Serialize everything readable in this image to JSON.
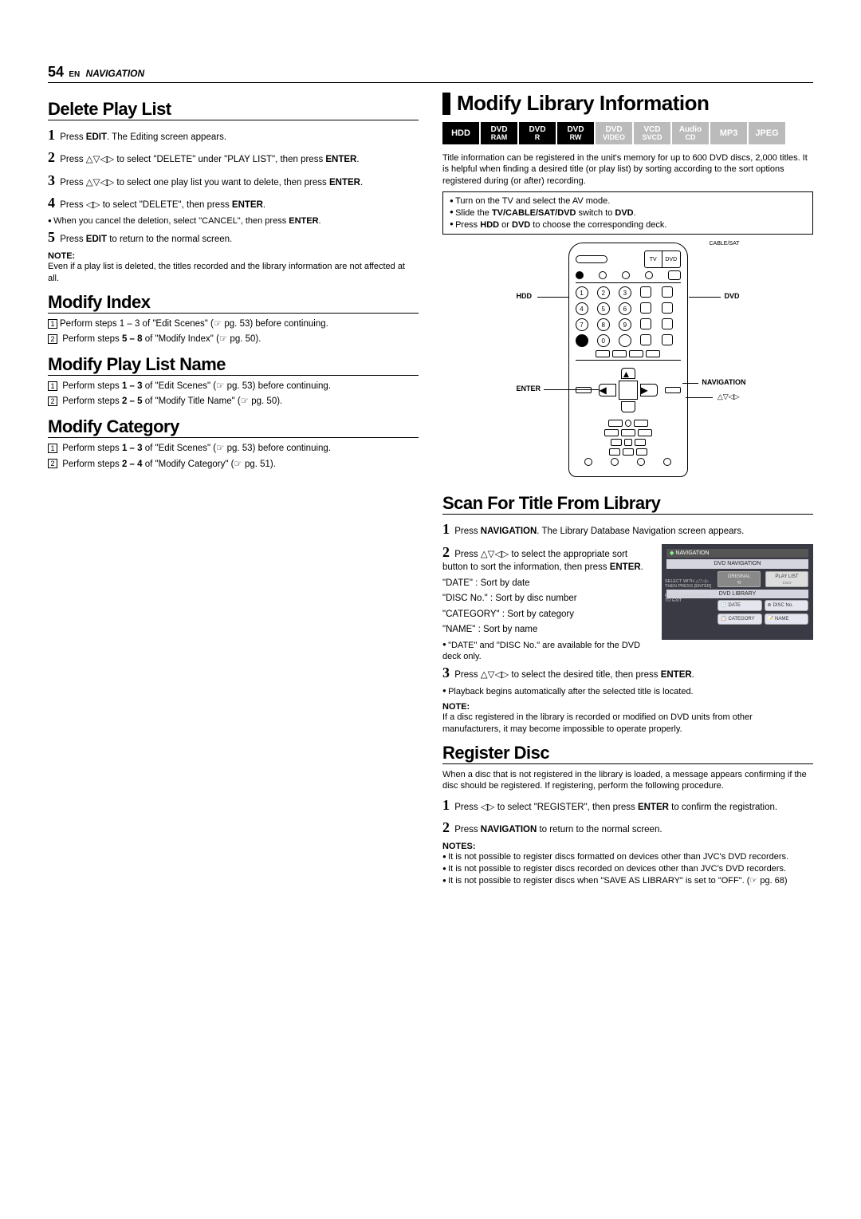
{
  "header": {
    "page_num": "54",
    "lang": "EN",
    "section": "NAVIGATION"
  },
  "left": {
    "delete": {
      "title": "Delete Play List",
      "s1": "Press EDIT. The Editing screen appears.",
      "s2": "Press △▽◁▷ to select \"DELETE\" under \"PLAY LIST\", then press ENTER.",
      "s3": "Press △▽◁▷ to select one play list you want to delete, then press ENTER.",
      "s4": "Press ◁▷ to select \"DELETE\", then press ENTER.",
      "s4b": "When you cancel the deletion, select \"CANCEL\", then press ENTER.",
      "s5": "Press EDIT to return to the normal screen.",
      "note_label": "NOTE:",
      "note": "Even if a play list is deleted, the titles recorded and the library information are not affected at all."
    },
    "modindex": {
      "title": "Modify Index",
      "b1": "Perform steps 1 – 3 of \"Edit Scenes\" (☞ pg. 53) before continuing.",
      "b2": "Perform steps 5 – 8 of \"Modify Index\" (☞ pg. 50)."
    },
    "modname": {
      "title": "Modify Play List Name",
      "b1": "Perform steps 1 – 3 of \"Edit Scenes\" (☞ pg. 53) before continuing.",
      "b2": "Perform steps 2 – 5 of \"Modify Title Name\" (☞ pg. 50)."
    },
    "modcat": {
      "title": "Modify Category",
      "b1": "Perform steps 1 – 3 of \"Edit Scenes\" (☞ pg. 53) before continuing.",
      "b2": "Perform steps 2 – 4 of \"Modify Category\" (☞ pg. 51)."
    }
  },
  "right": {
    "title": "Modify Library Information",
    "badges": [
      {
        "l1": "HDD",
        "l2": "",
        "dim": false,
        "single": true
      },
      {
        "l1": "DVD",
        "l2": "RAM",
        "dim": false
      },
      {
        "l1": "DVD",
        "l2": "R",
        "dim": false
      },
      {
        "l1": "DVD",
        "l2": "RW",
        "dim": false
      },
      {
        "l1": "DVD",
        "l2": "VIDEO",
        "dim": true
      },
      {
        "l1": "VCD",
        "l2": "SVCD",
        "dim": true
      },
      {
        "l1": "Audio",
        "l2": "CD",
        "dim": true
      },
      {
        "l1": "MP3",
        "l2": "",
        "dim": true,
        "single": true
      },
      {
        "l1": "JPEG",
        "l2": "",
        "dim": true,
        "single": true
      }
    ],
    "intro": "Title information can be registered in the unit's memory for up to 600 DVD discs, 2,000 titles. It is helpful when finding a desired title (or play list) by sorting according to the sort options registered during (or after) recording.",
    "prep": [
      "Turn on the TV and select the AV mode.",
      "Slide the TV/CABLE/SAT/DVD switch to DVD.",
      "Press HDD or DVD to choose the corresponding deck."
    ],
    "remote_labels": {
      "cablesat": "CABLE/SAT",
      "tv": "TV",
      "dvd": "DVD",
      "hdd": "HDD",
      "dvd2": "DVD",
      "enter": "ENTER",
      "navigation": "NAVIGATION",
      "arrows": "△▽◁▷"
    },
    "scan": {
      "title": "Scan For Title From Library",
      "s1": "Press NAVIGATION. The Library Database Navigation screen appears.",
      "s2a": "Press △▽◁▷ to select the appropriate sort button to sort the information, then press ENTER.",
      "s2b": "\"DATE\" : Sort by date",
      "s2c": "\"DISC No.\" : Sort by disc number",
      "s2d": "\"CATEGORY\" : Sort by category",
      "s2e": "\"NAME\" : Sort by name",
      "s2f": "\"DATE\" and \"DISC No.\" are available for the DVD deck only.",
      "s3": "Press △▽◁▷ to select the desired title, then press ENTER.",
      "s3b": "Playback begins automatically after the selected title is located.",
      "note_label": "NOTE:",
      "note": "If a disc registered in the library is recorded or modified on DVD units from other manufacturers, it may become impossible to operate properly."
    },
    "navthumb": {
      "hdr": "NAVIGATION",
      "sub1": "DVD NAVIGATION",
      "original": "ORIGINAL",
      "playlist": "PLAY LIST",
      "sub2": "DVD LIBRARY",
      "date": "DATE",
      "discno": "DISC No.",
      "category": "CATEGORY",
      "name": "NAME",
      "side1": "SELECT WITH △▽◁▷ THEN PRESS [ENTER]",
      "side2": "PRESS [NAVIGATION] TO EXIT",
      "side3": "OPERATE  ENTER  SELECT"
    },
    "register": {
      "title": "Register Disc",
      "intro": "When a disc that is not registered in the library is loaded, a message appears confirming if the disc should be registered. If registering, perform the following procedure.",
      "s1": "Press ◁▷ to select \"REGISTER\", then press ENTER to confirm the registration.",
      "s2": "Press NAVIGATION to return to the normal screen.",
      "notes_label": "NOTES:",
      "n1": "It is not possible to register discs formatted on devices other than JVC's DVD recorders.",
      "n2": "It is not possible to register discs recorded on devices other than JVC's DVD recorders.",
      "n3": "It is not possible to register discs when \"SAVE AS LIBRARY\" is set to \"OFF\". (☞ pg. 68)"
    }
  }
}
